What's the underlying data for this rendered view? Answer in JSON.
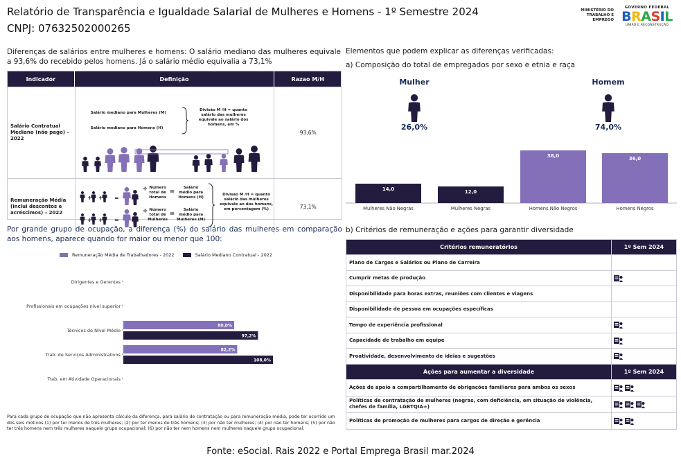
{
  "header": {
    "title": "Relatório de Transparência e Igualdade Salarial de Mulheres e Homens - 1º Semestre 2024",
    "cnpj": "CNPJ: 07632502000265",
    "ministry": "MINISTÉRIO DO TRABALHO E EMPREGO",
    "gov_top": "GOVERNO FEDERAL",
    "gov_brand": "BRASIL",
    "gov_sub": "UNIÃO E RECONSTRUÇÃO"
  },
  "intro": "Diferenças de salários entre mulheres e homens: O salário mediano das mulheres equivale a 93,6% do recebido pelos homens. Já o salário médio equivalia a 73,1%",
  "indicator_table": {
    "headers": [
      "Indicador",
      "Definição",
      "Razao M/H"
    ],
    "rows": [
      {
        "label": "Salário Contratual Mediano (não pago) – 2022",
        "value": "93,6%",
        "def_a": "Salário mediano para Mulheres (M)",
        "def_b": "Salário mediano para Homens (H)",
        "def_c": "Divisão M /H = quanto salário das mulheres equivale ao salário dos homens, em %"
      },
      {
        "label": "Remuneração Média (inclui descontos e acréscimos) – 2022",
        "value": "73,1%",
        "def_a1": "Número total de Homens",
        "def_a2": "Salário médio para Homens (H)",
        "def_b1": "Número total de Mulheres",
        "def_b2": "Salário médio para Mulheres (M)",
        "def_c": "Divisão M /H = quanto salário das mulheres equivale ao dos homens, em porcentagem (%)"
      }
    ]
  },
  "occupation_heading": "Por grande grupo de ocupação, a diferença (%) do salário das mulheres em comparação aos homens, aparece quando for maior ou menor que 100:",
  "chart_data": [
    {
      "type": "bar",
      "orientation": "horizontal",
      "categories": [
        "Dirigentes e Gerentes",
        "Profissionais em ocupações nível superior",
        "Técnicos de Nível Médio",
        "Trab. de Serviços Administrativos",
        "Trab. em Atividade Operacionais"
      ],
      "series": [
        {
          "name": "Remuneração Média de Trabalhadores - 2022",
          "values": [
            null,
            null,
            80.0,
            82.2,
            null
          ],
          "labels": [
            "",
            "",
            "80,0%",
            "82,2%",
            ""
          ],
          "color": "#8470b8"
        },
        {
          "name": "Salário Mediano Contratual - 2022",
          "values": [
            null,
            null,
            97.2,
            108.0,
            null
          ],
          "labels": [
            "",
            "",
            "97,2%",
            "108,0%",
            ""
          ],
          "color": "#241c3e"
        }
      ]
    },
    {
      "type": "bar",
      "categories": [
        "Mulheres Não Negras",
        "Mulheres Negras",
        "Homens Não Negros",
        "Homens Negros"
      ],
      "values": [
        14.0,
        12.0,
        38.0,
        36.0
      ],
      "labels": [
        "14,0",
        "12,0",
        "38,0",
        "36,0"
      ],
      "colors": [
        "#241c3e",
        "#241c3e",
        "#8470b8",
        "#8470b8"
      ],
      "groups": [
        {
          "name": "Mulher",
          "percent": "26,0%"
        },
        {
          "name": "Homem",
          "percent": "74,0%"
        }
      ]
    }
  ],
  "footnote": "Para cada grupo de ocupação que não apresenta cálculo da diferença, para salário de contratação ou para remuneração média, pode ter ocorrido um dos seis motivos:(1) por ter menos de três mulheres; (2) por ter menos de três homens; (3) por não ter mulheres; (4) por não ter homens; (5) por não ter três homens nem três mulheres naquele grupo ocupacional; (6) por não ter nem homens nem mulheres naquele grupo ocupacional.",
  "source": "Fonte: eSocial. Rais 2022 e Portal Emprega Brasil mar.2024",
  "right": {
    "heading": "Elementos que podem explicar as diferenças verificadas:",
    "sub_a": "a) Composição do total de empregados por sexo e etnia e raça",
    "sub_b": "b) Critérios de remuneração e ações para garantir diversidade"
  },
  "criteria_table": {
    "header": [
      "Critérios remuneratórios",
      "1º Sem 2024"
    ],
    "rows": [
      {
        "label": "Plano de Cargos e Salários ou Plano de Carreira",
        "icons": 0
      },
      {
        "label": "Cumprir metas de produção",
        "icons": 1
      },
      {
        "label": "Disponibilidade para horas extras, reuniões com clientes e viagens",
        "icons": 0
      },
      {
        "label": "Disponibilidade de pessoa em ocupações específicas",
        "icons": 0
      },
      {
        "label": "Tempo de experiência profissional",
        "icons": 1
      },
      {
        "label": "Capacidade de trabalho em equipe",
        "icons": 1
      },
      {
        "label": "Proatividade, desenvolvimento de ideias e sugestões",
        "icons": 1
      }
    ],
    "header2": [
      "Ações para aumentar a diversidade",
      "1º Sem 2024"
    ],
    "rows2": [
      {
        "label": "Ações de apoio a compartilhamento de obrigações familiares para ambos os sexos",
        "icons": 2
      },
      {
        "label": "Políticas de contratação de mulheres (negras, com deficiência, em situação de violência, chefes de família, LGBTQIA+)",
        "icons": 3
      },
      {
        "label": "Políticas de promoção de mulheres para cargos de direção e gerência",
        "icons": 2
      }
    ],
    "icon_name": "check-person-icon"
  }
}
